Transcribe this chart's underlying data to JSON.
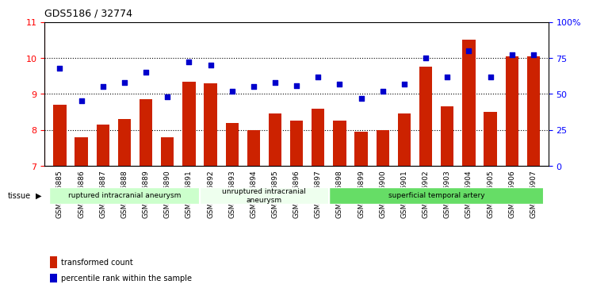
{
  "title": "GDS5186 / 32774",
  "samples": [
    "GSM1306885",
    "GSM1306886",
    "GSM1306887",
    "GSM1306888",
    "GSM1306889",
    "GSM1306890",
    "GSM1306891",
    "GSM1306892",
    "GSM1306893",
    "GSM1306894",
    "GSM1306895",
    "GSM1306896",
    "GSM1306897",
    "GSM1306898",
    "GSM1306899",
    "GSM1306900",
    "GSM1306901",
    "GSM1306902",
    "GSM1306903",
    "GSM1306904",
    "GSM1306905",
    "GSM1306906",
    "GSM1306907"
  ],
  "bar_values": [
    8.7,
    7.8,
    8.15,
    8.3,
    8.85,
    7.8,
    9.35,
    9.3,
    8.2,
    8.0,
    8.45,
    8.25,
    8.6,
    8.25,
    7.95,
    8.0,
    8.45,
    9.75,
    8.65,
    10.5,
    8.5,
    10.05,
    10.05
  ],
  "percentile_values": [
    68,
    45,
    55,
    58,
    65,
    48,
    72,
    70,
    52,
    55,
    58,
    56,
    62,
    57,
    47,
    52,
    57,
    75,
    62,
    80,
    62,
    77,
    77
  ],
  "bar_color": "#cc2200",
  "dot_color": "#0000cc",
  "ylim_left": [
    7,
    11
  ],
  "ylim_right": [
    0,
    100
  ],
  "yticks_left": [
    7,
    8,
    9,
    10,
    11
  ],
  "yticks_right": [
    0,
    25,
    50,
    75,
    100
  ],
  "ytick_labels_right": [
    "0",
    "25",
    "50",
    "75",
    "100%"
  ],
  "grid_lines": [
    8,
    9,
    10
  ],
  "groups": [
    {
      "label": "ruptured intracranial aneurysm",
      "start": 0,
      "end": 7,
      "color": "#ccffcc"
    },
    {
      "label": "unruptured intracranial\naneurysm",
      "start": 7,
      "end": 13,
      "color": "#eeffee"
    },
    {
      "label": "superficial temporal artery",
      "start": 13,
      "end": 23,
      "color": "#66dd66"
    }
  ],
  "tissue_label": "tissue",
  "legend_bar_label": "transformed count",
  "legend_dot_label": "percentile rank within the sample",
  "background_color": "#e8e8e8"
}
